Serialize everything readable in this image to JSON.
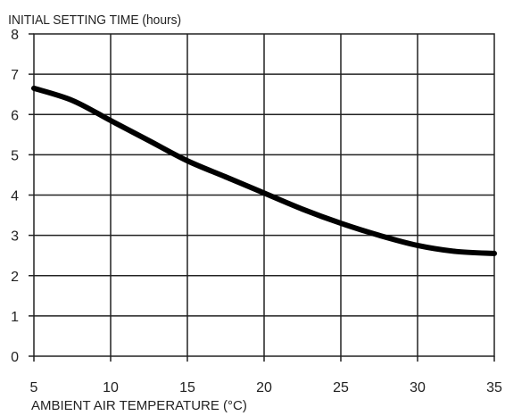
{
  "chart_data": {
    "type": "line",
    "title": "INITIAL SETTING TIME (hours)",
    "xlabel": "AMBIENT AIR TEMPERATURE (°C)",
    "ylabel": "",
    "xlim": [
      5,
      35
    ],
    "ylim": [
      0,
      8
    ],
    "x_ticks": [
      5,
      10,
      15,
      20,
      25,
      30,
      35
    ],
    "y_ticks": [
      0,
      1,
      2,
      3,
      4,
      5,
      6,
      7,
      8
    ],
    "grid": true,
    "legend": "none",
    "series": [
      {
        "color": "#000000",
        "x": [
          5,
          7.5,
          10,
          12.5,
          15,
          17.5,
          20,
          22.5,
          25,
          27.5,
          30,
          32.5,
          35
        ],
        "y": [
          6.65,
          6.35,
          5.85,
          5.35,
          4.85,
          4.45,
          4.05,
          3.65,
          3.3,
          3.0,
          2.75,
          2.6,
          2.55
        ]
      }
    ],
    "colors": {
      "axis": "#222222",
      "grid": "#222222",
      "line": "#000000"
    }
  }
}
